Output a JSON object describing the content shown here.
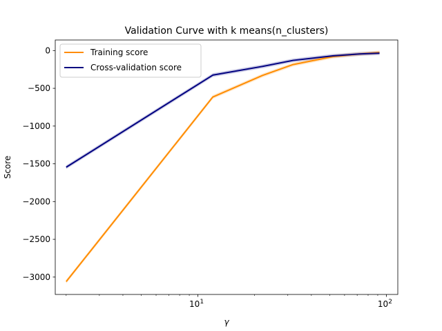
{
  "chart_data": {
    "type": "line",
    "title": "Validation Curve with k means(n_clusters)",
    "xlabel": "γ",
    "ylabel": "Score",
    "xscale": "log",
    "xlim": [
      1.75,
      115
    ],
    "ylim": [
      -3230,
      140
    ],
    "x_ticks": [
      {
        "value": 10,
        "base": "10",
        "exp": "1"
      },
      {
        "value": 100,
        "base": "10",
        "exp": "2"
      }
    ],
    "y_ticks": [
      {
        "value": 0,
        "label": "0"
      },
      {
        "value": -500,
        "label": "−500"
      },
      {
        "value": -1000,
        "label": "−1000"
      },
      {
        "value": -1500,
        "label": "−1500"
      },
      {
        "value": -2000,
        "label": "−2000"
      },
      {
        "value": -2500,
        "label": "−2500"
      },
      {
        "value": -3000,
        "label": "−3000"
      }
    ],
    "legend": "top-left",
    "grid": false,
    "x": [
      2,
      12,
      22,
      32,
      52,
      72,
      92
    ],
    "series": [
      {
        "name": "Training score",
        "color": "#ff8c00",
        "values": [
          -3060,
          -615,
          -330,
          -185,
          -80,
          -45,
          -25
        ],
        "band": 25
      },
      {
        "name": "Cross-validation score",
        "color": "#000080",
        "values": [
          -1545,
          -325,
          -210,
          -130,
          -70,
          -45,
          -35
        ],
        "band": 25
      }
    ]
  }
}
